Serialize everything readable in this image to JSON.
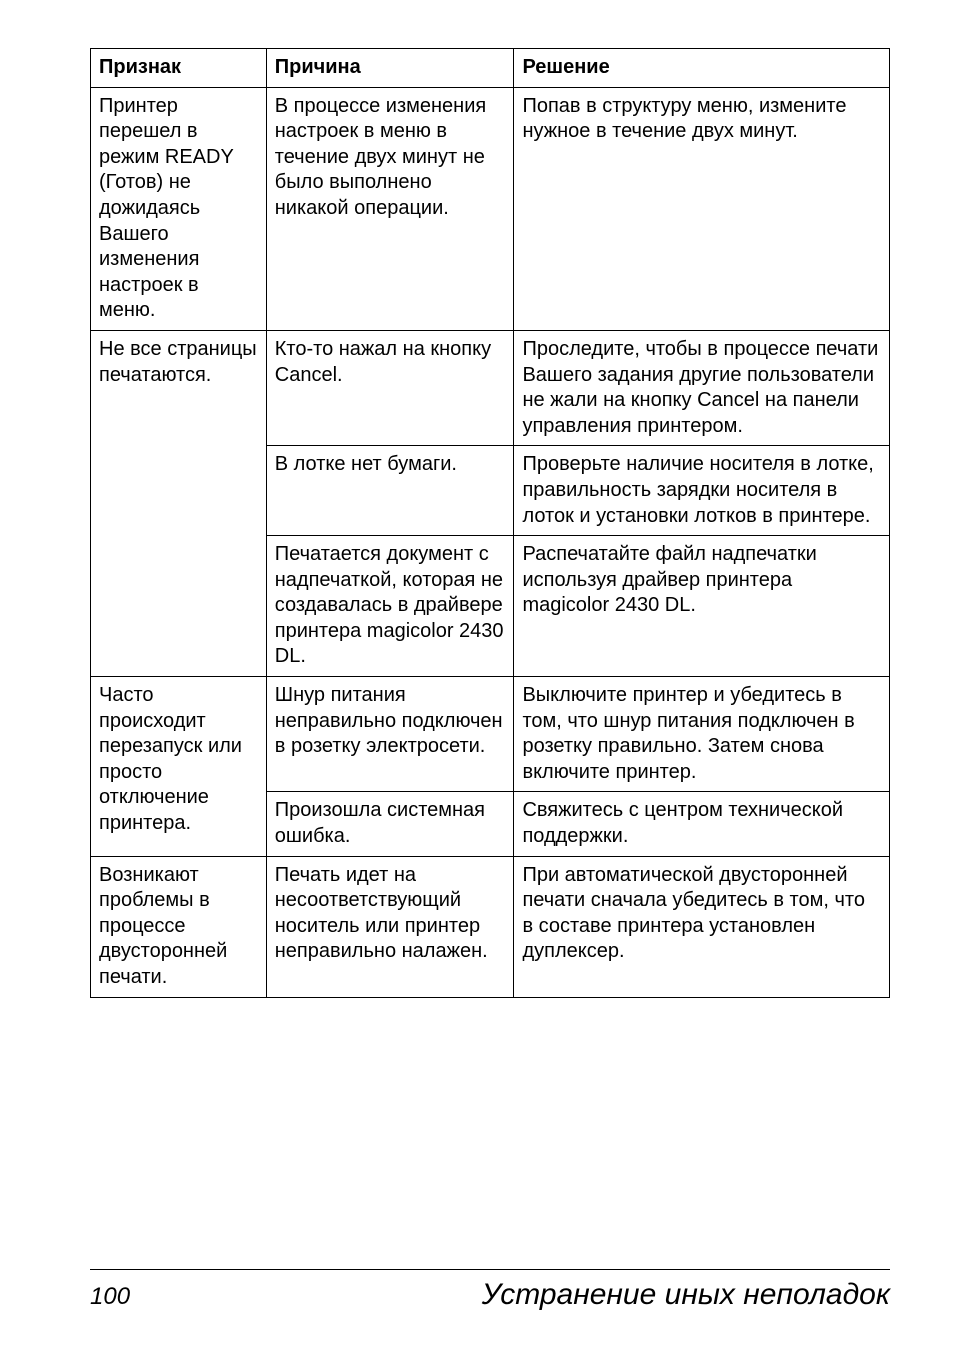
{
  "table": {
    "headers": {
      "symptom": "Признак",
      "cause": "Причина",
      "fix": "Решение"
    },
    "rows": [
      {
        "symptom": "Принтер перешел в режим READY (Готов) не дожидаясь Вашего изменения настроек в меню.",
        "cells": [
          {
            "cause": "В процессе изменения настроек в меню в течение двух минут не было выполнено никакой операции.",
            "fix": "Попав в структуру меню, измените нужное в течение двух минут."
          }
        ]
      },
      {
        "symptom": "Не все страницы печатаются.",
        "cells": [
          {
            "cause": "Кто-то нажал на кнопку Cancel.",
            "fix": "Проследите, чтобы в процессе печати Вашего задания другие пользователи не жали на кнопку Cancel на панели управления принтером."
          },
          {
            "cause": "В лотке нет бумаги.",
            "fix": "Проверьте наличие носителя в лотке, правильность зарядки носителя в лоток и установки лотков в принтере."
          },
          {
            "cause": "Печатается документ с надпечаткой, которая не создавалась в драйвере принтера magicolor 2430 DL.",
            "fix": "Распечатайте файл надпечатки используя драйвер принтера magicolor 2430 DL."
          }
        ]
      },
      {
        "symptom": "Часто происходит перезапуск или просто отключение принтера.",
        "cells": [
          {
            "cause": "Шнур питания неправильно подключен в розетку электросети.",
            "fix": "Выключите принтер и убедитесь в том, что шнур питания подключен в розетку правильно. Затем снова включите принтер."
          },
          {
            "cause": "Произошла системная ошибка.",
            "fix": "Свяжитесь с центром технической поддержки."
          }
        ]
      },
      {
        "symptom": "Возникают проблемы в процессе двусторонней печати.",
        "cells": [
          {
            "cause": "Печать идет на несоответствующий носитель или принтер неправильно налажен.",
            "fix": "При автоматической двусторонней печати сначала убедитесь в том, что в составе принтера установлен дуплексер."
          }
        ]
      }
    ]
  },
  "footer": {
    "page_number": "100",
    "section_title": "Устранение иных неполадок"
  }
}
